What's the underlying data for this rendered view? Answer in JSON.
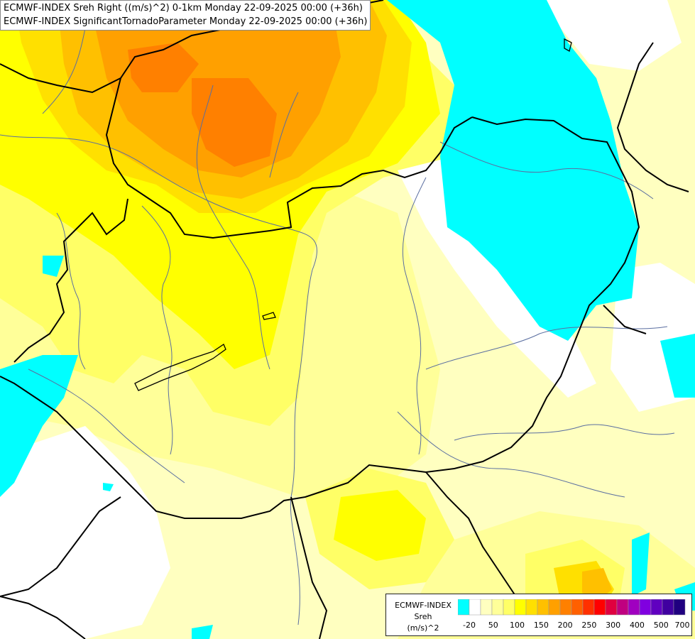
{
  "title": {
    "line1": "ECMWF-INDEX Sreh Right ((m/s)^2) 0-1km Monday 22-09-2025 00:00 (+36h)",
    "line2": "ECMWF-INDEX SignificantTornadoParameter Monday 22-09-2025 00:00 (+36h)"
  },
  "legend": {
    "model": "ECMWF-INDEX",
    "parameter": "Sreh",
    "unit": "(m/s)^2",
    "colors": [
      "#00ffff",
      "#ffffff",
      "#ffffc0",
      "#ffff99",
      "#ffff66",
      "#ffff00",
      "#ffe000",
      "#ffc000",
      "#ffa000",
      "#ff8000",
      "#ff6000",
      "#ff3000",
      "#ff0000",
      "#e00040",
      "#c00080",
      "#a000c0",
      "#8000e0",
      "#6000c0",
      "#4000a0",
      "#200080"
    ],
    "tick_labels": [
      "-20",
      "50",
      "100",
      "150",
      "200",
      "250",
      "300",
      "400",
      "500",
      "700"
    ]
  },
  "map_colors": {
    "cyan": "#00ffff",
    "white": "#ffffff",
    "pale_yellow": "#ffffc0",
    "light_yellow": "#ffff99",
    "yellow": "#ffff66",
    "bright_yellow": "#ffff00",
    "gold": "#ffe000",
    "amber": "#ffc000",
    "orange": "#ffa000",
    "dark_orange": "#ff8000",
    "border": "#000000",
    "river": "#5a6ea0"
  }
}
